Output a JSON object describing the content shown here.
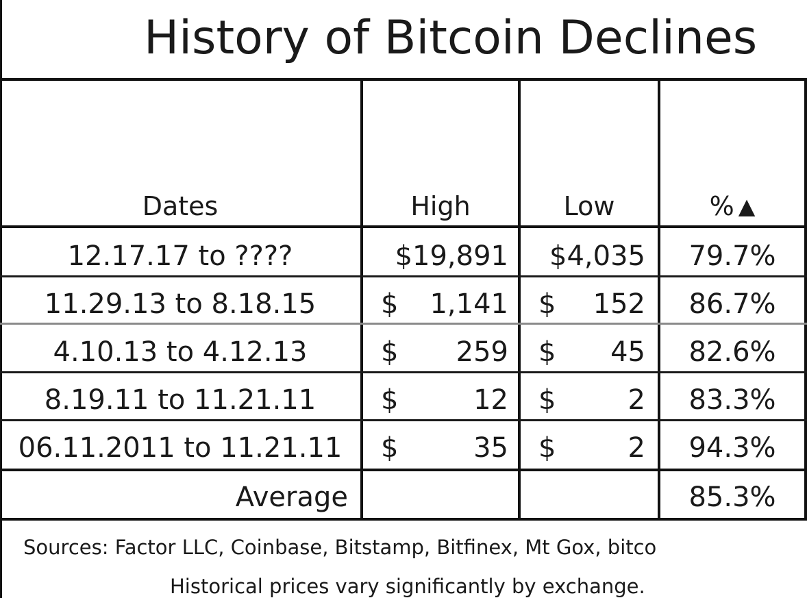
{
  "title": "History of Bitcoin Declines",
  "headers": {
    "dates": "Dates",
    "high": "High",
    "low": "Low",
    "pct": "%",
    "pct_icon": "▲"
  },
  "rows": [
    {
      "dates": "12.17.17 to ????",
      "high_sym": "",
      "high": "$19,891",
      "low_sym": "",
      "low": "$4,035",
      "pct": "79.7%"
    },
    {
      "dates": "11.29.13 to 8.18.15",
      "high_sym": "$",
      "high": "1,141",
      "low_sym": "$",
      "low": "152",
      "pct": "86.7%"
    },
    {
      "dates": "4.10.13 to 4.12.13",
      "high_sym": "$",
      "high": "259",
      "low_sym": "$",
      "low": "45",
      "pct": "82.6%"
    },
    {
      "dates": "8.19.11 to 11.21.11",
      "high_sym": "$",
      "high": "12",
      "low_sym": "$",
      "low": "2",
      "pct": "83.3%"
    },
    {
      "dates": "06.11.2011 to 11.21.11",
      "high_sym": "$",
      "high": "35",
      "low_sym": "$",
      "low": "2",
      "pct": "94.3%"
    }
  ],
  "average": {
    "label": "Average",
    "pct": "85.3%"
  },
  "footer": {
    "sources": "Sources: Factor LLC, Coinbase, Bitstamp, Bitfinex, Mt Gox, bitco",
    "note": "Historical prices vary significantly by exchange."
  }
}
